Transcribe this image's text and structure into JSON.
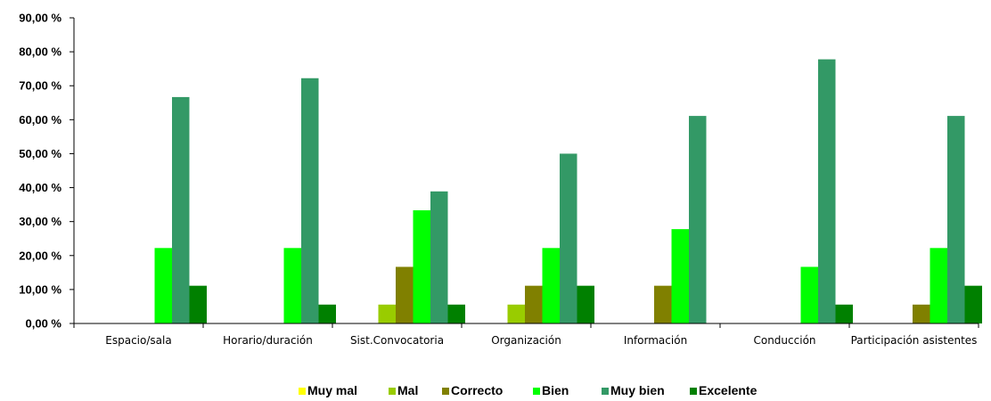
{
  "chart_data": {
    "type": "bar",
    "title": "",
    "xlabel": "",
    "ylabel": "",
    "ylim": [
      0,
      90
    ],
    "y_ticks": [
      0,
      10,
      20,
      30,
      40,
      50,
      60,
      70,
      80,
      90
    ],
    "y_tick_labels": [
      "0,00 %",
      "10,00 %",
      "20,00 %",
      "30,00 %",
      "40,00 %",
      "50,00 %",
      "60,00 %",
      "70,00 %",
      "80,00 %",
      "90,00 %"
    ],
    "grid": false,
    "legend_position": "bottom",
    "categories": [
      "Espacio/sala",
      "Horario/duración",
      "Sist.Convocatoria",
      "Organización",
      "Información",
      "Conducción",
      "Participación asistentes"
    ],
    "series": [
      {
        "name": "Muy mal",
        "color": "#ffff00",
        "values": [
          0,
          0,
          0,
          0,
          0,
          0,
          0
        ]
      },
      {
        "name": "Mal",
        "color": "#99cc00",
        "values": [
          0,
          0,
          5.56,
          5.56,
          0,
          0,
          0
        ]
      },
      {
        "name": "Correcto",
        "color": "#808000",
        "values": [
          0,
          0,
          16.67,
          11.11,
          11.11,
          0,
          5.56
        ]
      },
      {
        "name": "Bien",
        "color": "#00ff00",
        "values": [
          22.22,
          22.22,
          33.33,
          22.22,
          27.78,
          16.67,
          22.22
        ]
      },
      {
        "name": "Muy bien",
        "color": "#339966",
        "values": [
          66.67,
          72.22,
          38.89,
          50.0,
          61.11,
          77.78,
          61.11
        ]
      },
      {
        "name": "Excelente",
        "color": "#008000",
        "values": [
          11.11,
          5.56,
          5.56,
          11.11,
          0,
          5.56,
          11.11
        ]
      }
    ]
  }
}
